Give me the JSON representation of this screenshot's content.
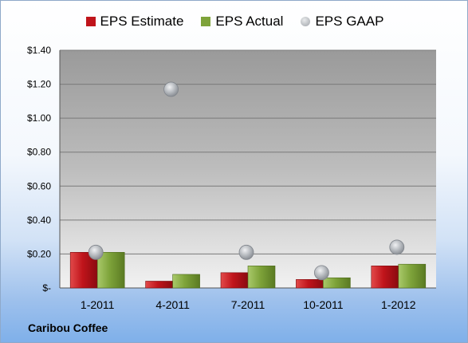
{
  "company_label": "Caribou Coffee",
  "colors": {
    "estimate": "#c0141b",
    "actual": "#7ea33a",
    "gaap": "#a0a4aa"
  },
  "chart_data": {
    "type": "bar",
    "categories": [
      "1-2011",
      "4-2011",
      "7-2011",
      "10-2011",
      "1-2012"
    ],
    "series": [
      {
        "name": "EPS Estimate",
        "type": "bar",
        "values": [
          0.21,
          0.04,
          0.09,
          0.05,
          0.13
        ]
      },
      {
        "name": "EPS Actual",
        "type": "bar",
        "values": [
          0.21,
          0.08,
          0.13,
          0.06,
          0.14
        ]
      },
      {
        "name": "EPS GAAP",
        "type": "scatter",
        "values": [
          0.21,
          1.17,
          0.21,
          0.09,
          0.24
        ]
      }
    ],
    "ylim": [
      0,
      1.4
    ],
    "yticks": [
      0,
      0.2,
      0.4,
      0.6,
      0.8,
      1.0,
      1.2,
      1.4
    ],
    "ytick_labels": [
      "$-",
      "$0.20",
      "$0.40",
      "$0.60",
      "$0.80",
      "$1.00",
      "$1.20",
      "$1.40"
    ],
    "legend_position": "top",
    "grid": true
  }
}
